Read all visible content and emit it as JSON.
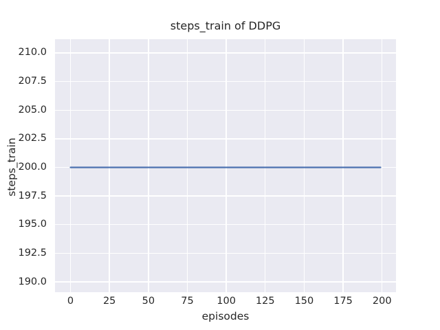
{
  "figure": {
    "background": "#ffffff",
    "text_color": "#262626"
  },
  "chart_data": {
    "type": "line",
    "title": "steps_train of DDPG",
    "xlabel": "episodes",
    "ylabel": "steps_train",
    "plot_background": "#eaeaf2",
    "grid": true,
    "grid_color": "#ffffff",
    "legend": false,
    "xlim": [
      -9.95,
      208.95
    ],
    "ylim": [
      189.1,
      211.2
    ],
    "xticks": [
      0,
      25,
      50,
      75,
      100,
      125,
      150,
      175,
      200
    ],
    "xtick_labels": [
      "0",
      "25",
      "50",
      "75",
      "100",
      "125",
      "150",
      "175",
      "200"
    ],
    "yticks": [
      190.0,
      192.5,
      195.0,
      197.5,
      200.0,
      202.5,
      205.0,
      207.5,
      210.0
    ],
    "ytick_labels": [
      "190.0",
      "192.5",
      "195.0",
      "197.5",
      "200.0",
      "202.5",
      "205.0",
      "207.5",
      "210.0"
    ],
    "series": [
      {
        "name": "steps_train",
        "color": "#4c72b0",
        "line_width": 2.3,
        "x": [
          0,
          199
        ],
        "y": [
          200,
          200
        ]
      }
    ]
  }
}
